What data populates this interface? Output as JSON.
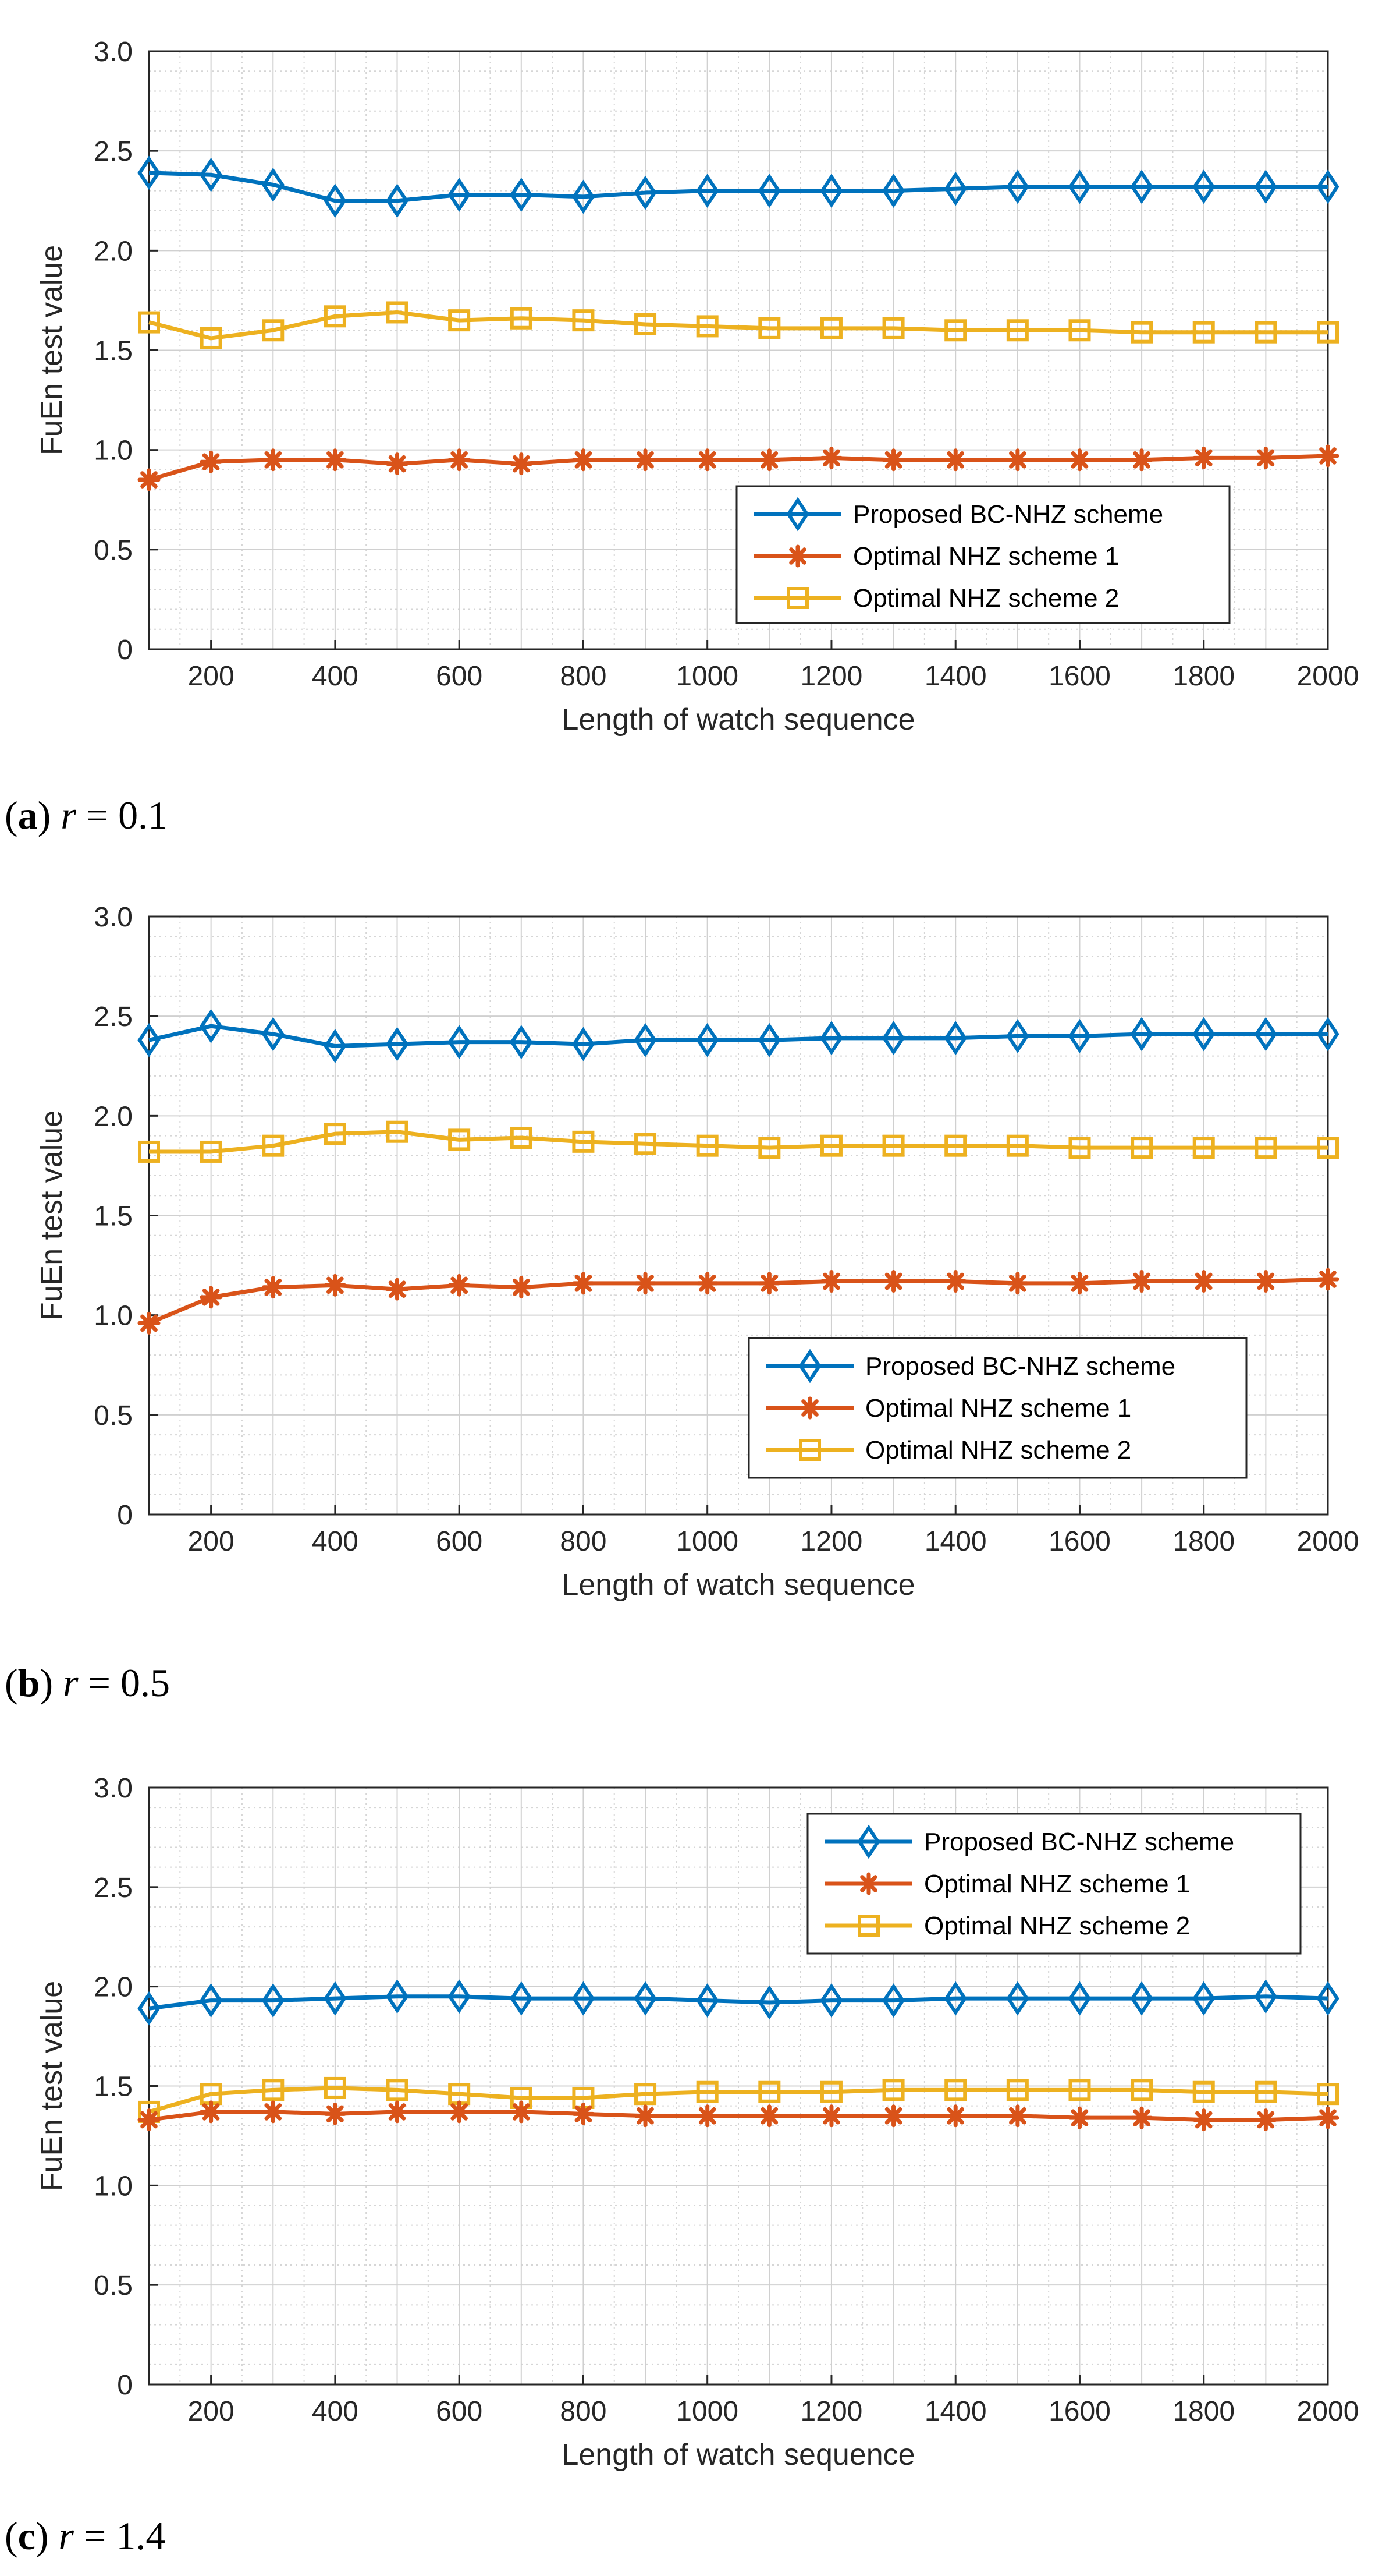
{
  "chart_data": [
    {
      "type": "line",
      "panel": "a",
      "caption": {
        "label": "a",
        "variable": "r",
        "relation": "=",
        "value": "0.1"
      },
      "xlabel": "Length of watch sequence",
      "ylabel": "FuEn test value",
      "xlim": [
        100,
        2000
      ],
      "ylim": [
        0,
        3
      ],
      "xticks": [
        200,
        400,
        600,
        800,
        1000,
        1200,
        1400,
        1600,
        1800,
        2000
      ],
      "yticks": [
        "0",
        "0.5",
        "1.0",
        "1.5",
        "2.0",
        "2.5",
        "3.0"
      ],
      "grid": true,
      "minor_grid": true,
      "legend_position": "bottom-right",
      "x": [
        100,
        200,
        300,
        400,
        500,
        600,
        700,
        800,
        900,
        1000,
        1100,
        1200,
        1300,
        1400,
        1500,
        1600,
        1700,
        1800,
        1900,
        2000
      ],
      "series": [
        {
          "name": "Proposed BC-NHZ scheme",
          "color": "#0072BD",
          "marker": "diamond",
          "values": [
            2.39,
            2.38,
            2.33,
            2.25,
            2.25,
            2.28,
            2.28,
            2.27,
            2.29,
            2.3,
            2.3,
            2.3,
            2.3,
            2.31,
            2.32,
            2.32,
            2.32,
            2.32,
            2.32,
            2.32
          ]
        },
        {
          "name": "Optimal NHZ scheme 1",
          "color": "#D95319",
          "marker": "star",
          "values": [
            0.85,
            0.94,
            0.95,
            0.95,
            0.93,
            0.95,
            0.93,
            0.95,
            0.95,
            0.95,
            0.95,
            0.96,
            0.95,
            0.95,
            0.95,
            0.95,
            0.95,
            0.96,
            0.96,
            0.97
          ]
        },
        {
          "name": "Optimal NHZ scheme 2",
          "color": "#EDB120",
          "marker": "square",
          "values": [
            1.64,
            1.56,
            1.6,
            1.67,
            1.69,
            1.65,
            1.66,
            1.65,
            1.63,
            1.62,
            1.61,
            1.61,
            1.61,
            1.6,
            1.6,
            1.6,
            1.59,
            1.59,
            1.59,
            1.59
          ]
        }
      ]
    },
    {
      "type": "line",
      "panel": "b",
      "caption": {
        "label": "b",
        "variable": "r",
        "relation": "=",
        "value": "0.5"
      },
      "xlabel": "Length of watch sequence",
      "ylabel": "FuEn test value",
      "xlim": [
        100,
        2000
      ],
      "ylim": [
        0,
        3
      ],
      "xticks": [
        200,
        400,
        600,
        800,
        1000,
        1200,
        1400,
        1600,
        1800,
        2000
      ],
      "yticks": [
        "0",
        "0.5",
        "1.0",
        "1.5",
        "2.0",
        "2.5",
        "3.0"
      ],
      "grid": true,
      "minor_grid": true,
      "legend_position": "bottom-right",
      "x": [
        100,
        200,
        300,
        400,
        500,
        600,
        700,
        800,
        900,
        1000,
        1100,
        1200,
        1300,
        1400,
        1500,
        1600,
        1700,
        1800,
        1900,
        2000
      ],
      "series": [
        {
          "name": "Proposed BC-NHZ scheme",
          "color": "#0072BD",
          "marker": "diamond",
          "values": [
            2.38,
            2.45,
            2.41,
            2.35,
            2.36,
            2.37,
            2.37,
            2.36,
            2.38,
            2.38,
            2.38,
            2.39,
            2.39,
            2.39,
            2.4,
            2.4,
            2.41,
            2.41,
            2.41,
            2.41
          ]
        },
        {
          "name": "Optimal NHZ scheme 1",
          "color": "#D95319",
          "marker": "star",
          "values": [
            0.96,
            1.09,
            1.14,
            1.15,
            1.13,
            1.15,
            1.14,
            1.16,
            1.16,
            1.16,
            1.16,
            1.17,
            1.17,
            1.17,
            1.16,
            1.16,
            1.17,
            1.17,
            1.17,
            1.18
          ]
        },
        {
          "name": "Optimal NHZ scheme 2",
          "color": "#EDB120",
          "marker": "square",
          "values": [
            1.82,
            1.82,
            1.85,
            1.91,
            1.92,
            1.88,
            1.89,
            1.87,
            1.86,
            1.85,
            1.84,
            1.85,
            1.85,
            1.85,
            1.85,
            1.84,
            1.84,
            1.84,
            1.84,
            1.84
          ]
        }
      ]
    },
    {
      "type": "line",
      "panel": "c",
      "caption": {
        "label": "c",
        "variable": "r",
        "relation": "=",
        "value": "1.4"
      },
      "xlabel": "Length of watch sequence",
      "ylabel": "FuEn test value",
      "xlim": [
        100,
        2000
      ],
      "ylim": [
        0,
        3
      ],
      "xticks": [
        200,
        400,
        600,
        800,
        1000,
        1200,
        1400,
        1600,
        1800,
        2000
      ],
      "yticks": [
        "0",
        "0.5",
        "1.0",
        "1.5",
        "2.0",
        "2.5",
        "3.0"
      ],
      "grid": true,
      "minor_grid": true,
      "legend_position": "top-right",
      "x": [
        100,
        200,
        300,
        400,
        500,
        600,
        700,
        800,
        900,
        1000,
        1100,
        1200,
        1300,
        1400,
        1500,
        1600,
        1700,
        1800,
        1900,
        2000
      ],
      "series": [
        {
          "name": "Proposed BC-NHZ scheme",
          "color": "#0072BD",
          "marker": "diamond",
          "values": [
            1.89,
            1.93,
            1.93,
            1.94,
            1.95,
            1.95,
            1.94,
            1.94,
            1.94,
            1.93,
            1.92,
            1.93,
            1.93,
            1.94,
            1.94,
            1.94,
            1.94,
            1.94,
            1.95,
            1.94
          ]
        },
        {
          "name": "Optimal NHZ scheme 1",
          "color": "#D95319",
          "marker": "star",
          "values": [
            1.33,
            1.37,
            1.37,
            1.36,
            1.37,
            1.37,
            1.37,
            1.36,
            1.35,
            1.35,
            1.35,
            1.35,
            1.35,
            1.35,
            1.35,
            1.34,
            1.34,
            1.33,
            1.33,
            1.34
          ]
        },
        {
          "name": "Optimal NHZ scheme 2",
          "color": "#EDB120",
          "marker": "square",
          "values": [
            1.37,
            1.46,
            1.48,
            1.49,
            1.48,
            1.46,
            1.44,
            1.44,
            1.46,
            1.47,
            1.47,
            1.47,
            1.48,
            1.48,
            1.48,
            1.48,
            1.48,
            1.47,
            1.47,
            1.46
          ]
        }
      ]
    }
  ]
}
